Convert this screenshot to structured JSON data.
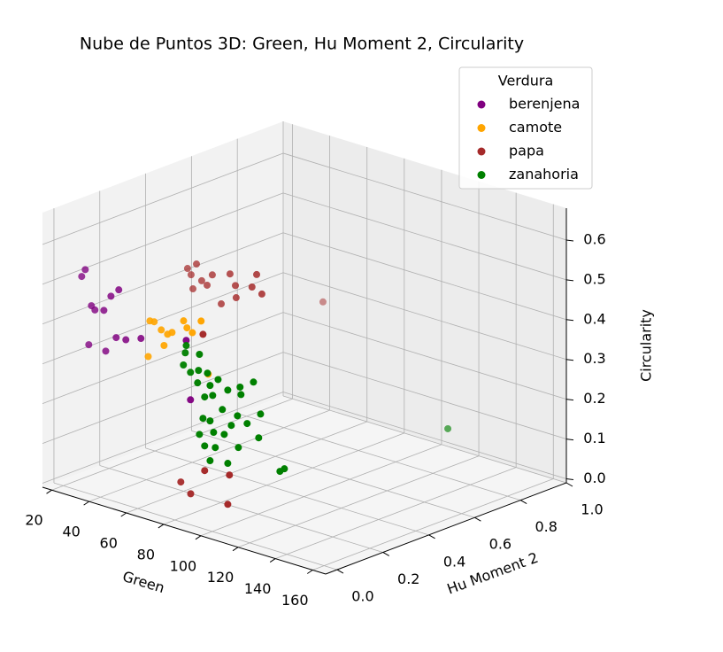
{
  "chart_data": {
    "type": "scatter3d",
    "title": "Nube de Puntos 3D: Green, Hu Moment 2, Circularity",
    "xlabel": "Green",
    "ylabel": "Hu Moment 2",
    "zlabel": "Circularity",
    "xlim": [
      15,
      167
    ],
    "ylim": [
      -0.05,
      1.0
    ],
    "zlim": [
      -0.01,
      0.68
    ],
    "xticks": [
      20,
      40,
      60,
      80,
      100,
      120,
      140,
      160
    ],
    "yticks": [
      {
        "value": 0,
        "label": "0.0"
      },
      {
        "value": 0.2,
        "label": "0.2"
      },
      {
        "value": 0.4,
        "label": "0.4"
      },
      {
        "value": 0.6,
        "label": "0.6"
      },
      {
        "value": 0.8,
        "label": "0.8"
      },
      {
        "value": 1,
        "label": "1.0"
      }
    ],
    "zticks": [
      {
        "value": 0,
        "label": "0.0"
      },
      {
        "value": 0.1,
        "label": "0.1"
      },
      {
        "value": 0.2,
        "label": "0.2"
      },
      {
        "value": 0.3,
        "label": "0.3"
      },
      {
        "value": 0.4,
        "label": "0.4"
      },
      {
        "value": 0.5,
        "label": "0.5"
      },
      {
        "value": 0.6,
        "label": "0.6"
      }
    ],
    "grid": true,
    "legend": {
      "title": "Verdura",
      "loc": "upper right"
    },
    "series": [
      {
        "name": "berenjena",
        "color": "#800080",
        "x": [
          31.8,
          29.9,
          35.1,
          37.0,
          41.8,
          45.6,
          49.8,
          48.4,
          53.6,
          61.7,
          33.7,
          42.8,
          86.0,
          88.3
        ],
        "y": [
          0.0,
          0.0,
          0.0,
          0.0,
          0.0,
          0.0,
          0.0,
          0.0,
          0.0,
          0.0,
          0.0,
          0.0,
          0.0,
          0.0
        ],
        "z": [
          0.55,
          0.53,
          0.464,
          0.456,
          0.462,
          0.503,
          0.525,
          0.403,
          0.405,
          0.42,
          0.364,
          0.361,
          0.45,
          0.304
        ]
      },
      {
        "name": "camote",
        "color": "#ffa500",
        "x": [
          66.5,
          68.8,
          72.6,
          76.0,
          65.6,
          74.1,
          84.6,
          86.4,
          94.0,
          89.3,
          97.8,
          78.4
        ],
        "y": [
          0.0,
          0.0,
          0.0,
          0.0,
          0.0,
          0.0,
          0.0,
          0.0,
          0.0,
          0.0,
          0.0,
          0.0
        ],
        "z": [
          0.471,
          0.472,
          0.457,
          0.451,
          0.38,
          0.42,
          0.497,
          0.482,
          0.51,
          0.474,
          0.382,
          0.459
        ]
      },
      {
        "name": "papa",
        "color": "#a52a2a",
        "x": [
          54.1,
          58.9,
          56.0,
          61.7,
          64.6,
          57.0,
          67.4,
          76.9,
          79.8,
          80.2,
          72.2,
          91.2,
          88.7,
          94.0,
          62.2,
          95.0,
          83.1,
          88.4,
          95.9,
          109.2,
          108.3
        ],
        "y": [
          0.265,
          0.265,
          0.265,
          0.265,
          0.265,
          0.265,
          0.265,
          0.265,
          0.265,
          0.265,
          0.265,
          0.265,
          0.265,
          0.265,
          0.79,
          0.0,
          0.0,
          0.0,
          0.0,
          0.0,
          0.0
        ],
        "z": [
          0.527,
          0.545,
          0.514,
          0.507,
          0.5,
          0.48,
          0.53,
          0.546,
          0.521,
          0.491,
          0.464,
          0.565,
          0.53,
          0.52,
          0.34,
          0.478,
          0.09,
          0.068,
          0.137,
          0.145,
          0.07
        ]
      },
      {
        "name": "zanahoria",
        "color": "#008000",
        "x": [
          86.0,
          85.5,
          93.1,
          84.5,
          88.3,
          92.6,
          97.4,
          103.1,
          98.8,
          92.1,
          100.2,
          95.9,
          108.3,
          114.9,
          122.1,
          115.4,
          105.4,
          95.0,
          98.8,
          113.5,
          125.9,
          100.7,
          110.2,
          118.7,
          93.1,
          106.4,
          124.9,
          95.9,
          101.6,
          114.0,
          98.8,
          108.3,
          136.3,
          138.7,
          116.3
        ],
        "y": [
          0.0,
          0.0,
          0.0,
          0.0,
          0.0,
          0.0,
          0.0,
          0.0,
          0.0,
          0.0,
          0.0,
          0.0,
          0.0,
          0.0,
          0.0,
          0.0,
          0.0,
          0.0,
          0.0,
          0.0,
          0.0,
          0.0,
          0.0,
          0.0,
          0.0,
          0.0,
          0.0,
          0.0,
          0.0,
          0.0,
          0.0,
          0.0,
          0.0,
          0.0,
          0.895
        ],
        "z": [
          0.437,
          0.418,
          0.425,
          0.386,
          0.373,
          0.384,
          0.384,
          0.376,
          0.355,
          0.352,
          0.332,
          0.322,
          0.357,
          0.374,
          0.397,
          0.356,
          0.304,
          0.267,
          0.266,
          0.3,
          0.322,
          0.24,
          0.271,
          0.288,
          0.224,
          0.243,
          0.261,
          0.199,
          0.203,
          0.221,
          0.166,
          0.173,
          0.193,
          0.203,
          0.076
        ]
      }
    ]
  }
}
